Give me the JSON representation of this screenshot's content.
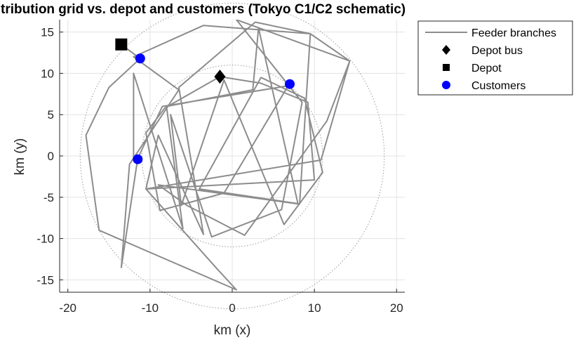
{
  "chart_data": {
    "type": "line",
    "title": "tribution grid vs. depot and customers (Tokyo C1/C2 schematic)",
    "xlabel": "km (x)",
    "ylabel": "km (y)",
    "xlim": [
      -21,
      21
    ],
    "ylim": [
      -16.5,
      16.5
    ],
    "xticks": [
      -20,
      -10,
      0,
      10,
      20
    ],
    "yticks": [
      -15,
      -10,
      -5,
      0,
      5,
      10,
      15
    ],
    "xtick_labels": [
      "-20",
      "-10",
      "0",
      "10",
      "20"
    ],
    "ytick_labels": [
      "-15",
      "-10",
      "-5",
      "0",
      "5",
      "10",
      "15"
    ],
    "grid": true,
    "legend_position": "outside-top-right",
    "colors": {
      "feeder": "#8c8c8c",
      "customer": "#0000ff",
      "depot": "#000000",
      "circle": "#9a9a9a",
      "grid": "#e3e3e3",
      "axis": "#262626"
    },
    "guide_circles": [
      {
        "cx": 0,
        "cy": 0,
        "r": 18.5
      },
      {
        "cx": 0,
        "cy": 0,
        "r": 11
      }
    ],
    "series": [
      {
        "name": "Feeder branches",
        "kind": "polyline",
        "points": [
          [
            -13.5,
            13.5
          ],
          [
            -11.2,
            11.8
          ],
          [
            -15,
            8.3
          ],
          [
            -17.8,
            2.5
          ],
          [
            -16.2,
            -9.0
          ],
          [
            0.5,
            -16.2
          ],
          [
            -2.0,
            -13.5
          ],
          [
            -10.5,
            -4.0
          ],
          [
            10.0,
            -2.9
          ],
          [
            9.2,
            6.5
          ],
          [
            3.5,
            8.8
          ],
          [
            -1.5,
            9.6
          ],
          [
            -8.2,
            5.8
          ],
          [
            -10.5,
            2.8
          ],
          [
            -8.8,
            -6.6
          ],
          [
            -1.0,
            -4.5
          ],
          [
            6.8,
            8.5
          ],
          [
            -8.5,
            6.0
          ],
          [
            -11.5,
            -0.3
          ],
          [
            -13.5,
            -13.5
          ],
          [
            -12.5,
            -1.0
          ],
          [
            -6.5,
            8.0
          ],
          [
            -12.0,
            12.0
          ],
          [
            -3.5,
            15.8
          ],
          [
            9.5,
            14.8
          ],
          [
            14.3,
            11.5
          ],
          [
            10.8,
            -0.5
          ],
          [
            -10.5,
            -4.0
          ],
          [
            -9.0,
            2.5
          ],
          [
            -3.5,
            -9.5
          ],
          [
            -6.5,
            8.3
          ],
          [
            2.8,
            16.2
          ],
          [
            9.5,
            14.8
          ],
          [
            8.2,
            -5.8
          ],
          [
            -4.0,
            -4.0
          ],
          [
            3.5,
            9.5
          ],
          [
            8.8,
            7.0
          ],
          [
            11.0,
            -2.0
          ],
          [
            6.3,
            -8.3
          ],
          [
            -1.0,
            9.2
          ],
          [
            -6.2,
            -6.0
          ],
          [
            -7.5,
            5.0
          ],
          [
            -2.5,
            -9.8
          ],
          [
            6.0,
            -6.5
          ],
          [
            8.5,
            6.5
          ],
          [
            0.5,
            16.5
          ],
          [
            14.3,
            11.5
          ],
          [
            11.5,
            4.2
          ],
          [
            1.5,
            -9.6
          ],
          [
            -5.5,
            -6.0
          ],
          [
            -9.0,
            -3.5
          ],
          [
            8.0,
            -5.8
          ],
          [
            3.2,
            15.5
          ],
          [
            2.5,
            8.0
          ],
          [
            -8.0,
            6.0
          ],
          [
            -6.0,
            -8.8
          ],
          [
            -12.0,
            10.0
          ],
          [
            -12.0,
            -0.2
          ]
        ]
      },
      {
        "name": "Depot bus",
        "kind": "marker",
        "marker": "diamond",
        "points": [
          [
            -1.5,
            9.6
          ]
        ]
      },
      {
        "name": "Depot",
        "kind": "marker",
        "marker": "square",
        "points": [
          [
            -13.5,
            13.5
          ]
        ]
      },
      {
        "name": "Customers",
        "kind": "marker",
        "marker": "circle",
        "points": [
          [
            -11.2,
            11.8
          ],
          [
            7.0,
            8.7
          ],
          [
            -11.5,
            -0.4
          ]
        ]
      }
    ],
    "legend": [
      {
        "label": "Feeder branches",
        "symbol": "line"
      },
      {
        "label": "Depot bus",
        "symbol": "diamond"
      },
      {
        "label": "Depot",
        "symbol": "square"
      },
      {
        "label": "Customers",
        "symbol": "circle"
      }
    ]
  }
}
